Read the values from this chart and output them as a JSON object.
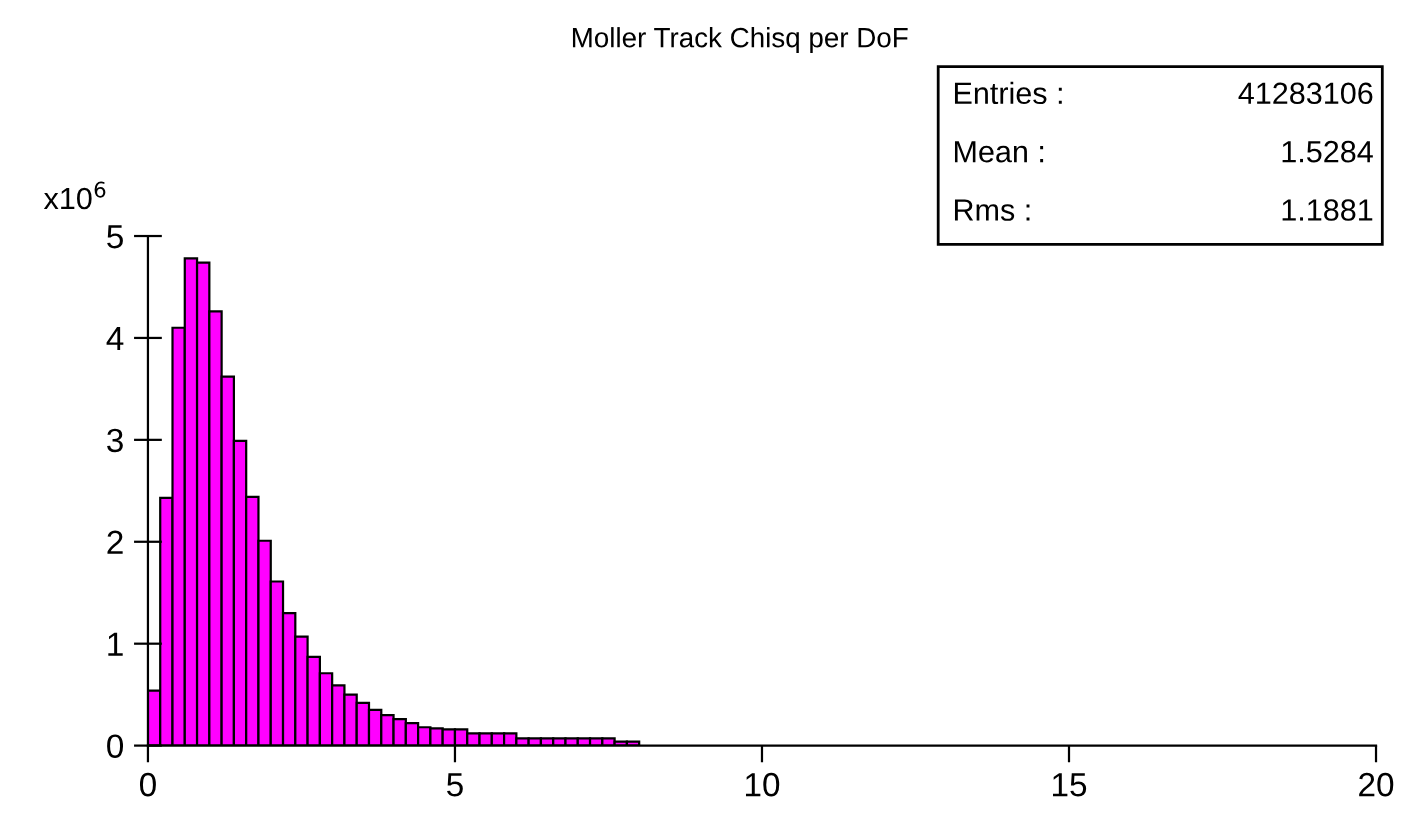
{
  "chart_data": {
    "type": "histogram",
    "title": "Moller Track Chisq per DoF",
    "ylabel": "x10$^{6}$",
    "bins": [
      0,
      0.2,
      0.4,
      0.6,
      0.8,
      1.0,
      1.2,
      1.4,
      1.6,
      1.8,
      2.0,
      2.2,
      2.4,
      2.6,
      2.8,
      3.0,
      3.2,
      3.4,
      3.6,
      3.8,
      4.0,
      4.2,
      4.4,
      4.6,
      4.8,
      5.0,
      5.2,
      5.4,
      5.6,
      5.8,
      6.0,
      6.2,
      6.4,
      6.6,
      6.8,
      7.0,
      7.2,
      7.4,
      7.6,
      7.8,
      8.0
    ],
    "values": [
      0.54,
      2.43,
      4.1,
      4.78,
      4.74,
      4.26,
      3.62,
      2.99,
      2.44,
      2.01,
      1.61,
      1.3,
      1.07,
      0.87,
      0.71,
      0.59,
      0.5,
      0.42,
      0.35,
      0.3,
      0.26,
      0.22,
      0.18,
      0.17,
      0.16,
      0.16,
      0.12,
      0.12,
      0.12,
      0.12,
      0.07,
      0.07,
      0.07,
      0.07,
      0.07,
      0.07,
      0.07,
      0.07,
      0.04,
      0.04
    ],
    "color": "#ff00ff",
    "xlim": [
      0,
      20
    ],
    "xticks": [
      0,
      5,
      10,
      15,
      20
    ],
    "ylim": [
      0,
      5
    ],
    "yticks": [
      0,
      1,
      2,
      3,
      4,
      5
    ],
    "grid": false,
    "legend": false,
    "annotations": [
      "Entries : 41283106",
      "Mean : 1.5284",
      "Rms : 1.1881"
    ]
  }
}
